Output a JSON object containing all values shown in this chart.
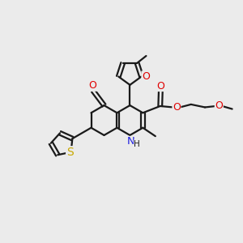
{
  "background_color": "#ebebeb",
  "bond_color": "#1a1a1a",
  "bond_width": 1.6,
  "atom_colors": {
    "O": "#e00000",
    "N": "#2020e0",
    "S": "#c8a800",
    "C": "#1a1a1a",
    "H": "#1a1a1a"
  },
  "figsize": [
    3.0,
    3.0
  ],
  "dpi": 100,
  "xlim": [
    0,
    10
  ],
  "ylim": [
    0,
    10
  ]
}
